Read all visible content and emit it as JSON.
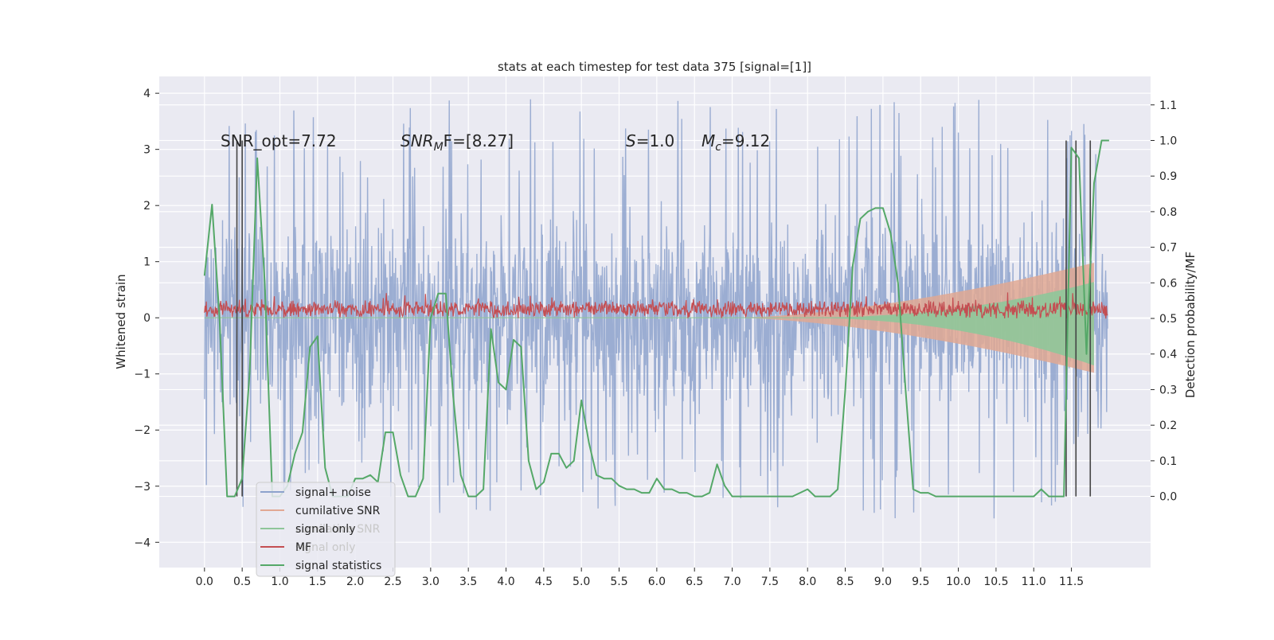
{
  "chart_data": {
    "type": "line",
    "title": "stats at each timestep for test data 375 [signal=[1]]",
    "ylabel_left": "Whitened strain",
    "ylabel_right": "Detection probability/MF",
    "xlim": [
      -0.6,
      12.55
    ],
    "ylim_left": [
      -4.45,
      4.3
    ],
    "ylim_right": [
      -0.2,
      1.18
    ],
    "grid": true,
    "legend_position": "lower-left",
    "x_ticks": [
      "0.0",
      "0.5",
      "1.0",
      "1.5",
      "2.0",
      "2.5",
      "3.0",
      "3.5",
      "4.0",
      "4.5",
      "5.0",
      "5.5",
      "6.0",
      "6.5",
      "7.0",
      "7.5",
      "8.0",
      "8.5",
      "9.0",
      "9.5",
      "10.0",
      "10.5",
      "11.0",
      "11.5"
    ],
    "y_ticks_left": [
      "4",
      "3",
      "2",
      "1",
      "0",
      "−1",
      "−2",
      "−3",
      "−4"
    ],
    "y_ticks_right": [
      "1.1",
      "1.0",
      "0.9",
      "0.8",
      "0.7",
      "0.6",
      "0.5",
      "0.4",
      "0.3",
      "0.2",
      "0.1",
      "0.0"
    ],
    "annotations": {
      "snr_opt": "SNR_opt=7.72",
      "snr_mf_main": "SNR",
      "snr_mf_sub": "M",
      "snr_mf_rest": "F=[8.27]",
      "s_main": "S",
      "s_rest": "=1.0",
      "mc_main": "M",
      "mc_sub": "c",
      "mc_rest": "=9.12"
    },
    "legend": [
      {
        "label": "signal+ noise",
        "color": "#8da2cc"
      },
      {
        "label": "cumilative SNR",
        "color": "#e1a893"
      },
      {
        "label": "signal only",
        "color": "#8fc69a"
      },
      {
        "label": "MF",
        "color": "#c44e52"
      },
      {
        "label": "signal statistics",
        "color": "#55a868"
      }
    ],
    "legend_ghost": [
      "cumilative SNR",
      "signal only"
    ],
    "series": [
      {
        "name": "signal+ noise",
        "axis": "left",
        "x_range": [
          0.0,
          11.98
        ],
        "typical_envelope": [
          -2.2,
          2.5
        ],
        "extremes": [
          -3.6,
          3.9
        ]
      },
      {
        "name": "cumilative SNR",
        "axis": "left",
        "x_range": [
          7.0,
          11.8
        ],
        "envelope_end": [
          -0.98,
          0.98
        ]
      },
      {
        "name": "signal only",
        "axis": "left",
        "x_range": [
          0.0,
          11.8
        ],
        "envelope_end": [
          -0.85,
          0.85
        ]
      },
      {
        "name": "MF",
        "axis": "left",
        "x_range": [
          0.0,
          11.98
        ],
        "typical_envelope": [
          0.0,
          0.35
        ]
      },
      {
        "name": "signal statistics",
        "axis": "right",
        "x": [
          0.0,
          0.1,
          0.2,
          0.3,
          0.4,
          0.5,
          0.6,
          0.7,
          0.8,
          0.9,
          1.0,
          1.1,
          1.2,
          1.3,
          1.4,
          1.5,
          1.6,
          1.7,
          1.8,
          1.9,
          2.0,
          2.1,
          2.2,
          2.3,
          2.4,
          2.5,
          2.6,
          2.7,
          2.8,
          2.9,
          3.0,
          3.1,
          3.2,
          3.3,
          3.4,
          3.5,
          3.6,
          3.7,
          3.8,
          3.9,
          4.0,
          4.1,
          4.2,
          4.3,
          4.4,
          4.5,
          4.6,
          4.7,
          4.8,
          4.9,
          5.0,
          5.1,
          5.2,
          5.3,
          5.4,
          5.5,
          5.6,
          5.7,
          5.8,
          5.9,
          6.0,
          6.1,
          6.2,
          6.3,
          6.4,
          6.5,
          6.6,
          6.7,
          6.8,
          6.9,
          7.0,
          7.1,
          7.2,
          7.3,
          7.4,
          7.5,
          7.6,
          7.7,
          7.8,
          7.9,
          8.0,
          8.1,
          8.2,
          8.3,
          8.4,
          8.5,
          8.6,
          8.7,
          8.8,
          8.9,
          9.0,
          9.1,
          9.2,
          9.3,
          9.4,
          9.5,
          9.6,
          9.7,
          9.8,
          9.9,
          10.0,
          10.1,
          10.2,
          10.3,
          10.4,
          10.5,
          10.6,
          10.7,
          10.8,
          10.9,
          11.0,
          11.1,
          11.2,
          11.3,
          11.4,
          11.5,
          11.6,
          11.7,
          11.8,
          11.9,
          12.0
        ],
        "values": [
          0.62,
          0.82,
          0.5,
          0.0,
          0.0,
          0.05,
          0.35,
          0.95,
          0.6,
          0.0,
          0.0,
          0.03,
          0.12,
          0.18,
          0.42,
          0.45,
          0.08,
          0.0,
          0.0,
          0.0,
          0.05,
          0.05,
          0.06,
          0.04,
          0.18,
          0.18,
          0.06,
          0.0,
          0.0,
          0.05,
          0.5,
          0.57,
          0.57,
          0.28,
          0.06,
          0.0,
          0.0,
          0.02,
          0.47,
          0.32,
          0.3,
          0.44,
          0.42,
          0.1,
          0.02,
          0.04,
          0.12,
          0.12,
          0.08,
          0.1,
          0.27,
          0.15,
          0.06,
          0.05,
          0.05,
          0.03,
          0.02,
          0.02,
          0.01,
          0.01,
          0.05,
          0.02,
          0.02,
          0.01,
          0.01,
          0.0,
          0.0,
          0.01,
          0.09,
          0.03,
          0.0,
          0.0,
          0.0,
          0.0,
          0.0,
          0.0,
          0.0,
          0.0,
          0.0,
          0.01,
          0.02,
          0.0,
          0.0,
          0.0,
          0.02,
          0.3,
          0.65,
          0.78,
          0.8,
          0.81,
          0.81,
          0.74,
          0.6,
          0.3,
          0.02,
          0.01,
          0.01,
          0.0,
          0.0,
          0.0,
          0.0,
          0.0,
          0.0,
          0.0,
          0.0,
          0.0,
          0.0,
          0.0,
          0.0,
          0.0,
          0.0,
          0.02,
          0.0,
          0.0,
          0.0,
          0.98,
          0.95,
          0.4,
          0.88,
          1.0,
          1.0
        ]
      }
    ],
    "vertical_markers": [
      0.43,
      0.5,
      11.43,
      11.56,
      11.75
    ],
    "colors": {
      "plot_bg": "#eaeaf2",
      "grid": "#ffffff",
      "noise": "#8da2cc",
      "cumulative_snr": "#e1a893",
      "signal_only": "#8fc69a",
      "mf": "#c44e52",
      "signal_statistics": "#55a868",
      "marker": "#444444"
    }
  }
}
